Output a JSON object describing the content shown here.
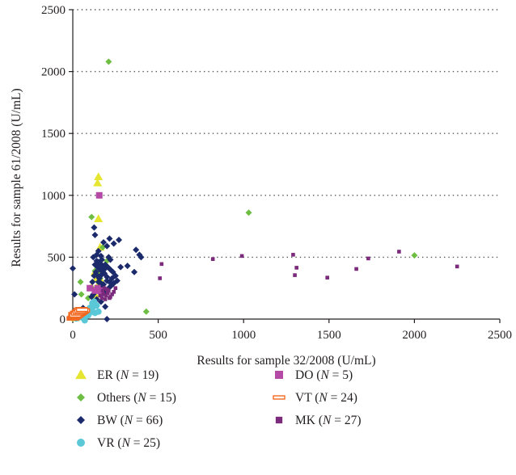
{
  "chart_data": {
    "type": "scatter",
    "xlabel": "Results for sample 32/2008 (U/mL)",
    "ylabel": "Results for sample 61/2008 (U/mL)",
    "xlim": [
      0,
      2500
    ],
    "ylim": [
      0,
      2500
    ],
    "x_ticks": [
      "0",
      "500",
      "1000",
      "1500",
      "2000",
      "2500"
    ],
    "y_ticks": [
      "0",
      "500",
      "1000",
      "1500",
      "2000",
      "2500"
    ],
    "grid": "horizontal dotted at 500-unit steps",
    "legend_placement": "below plot, two columns",
    "series": [
      {
        "name": "ER",
        "n_label": "19",
        "marker": "triangle",
        "color": "#e6e632",
        "points": [
          [
            150,
            1150
          ],
          [
            145,
            1100
          ],
          [
            150,
            810
          ],
          [
            160,
            580
          ],
          [
            130,
            380
          ],
          [
            155,
            420
          ],
          [
            170,
            300
          ],
          [
            110,
            260
          ],
          [
            130,
            200
          ],
          [
            145,
            270
          ],
          [
            120,
            150
          ],
          [
            60,
            60
          ],
          [
            40,
            45
          ],
          [
            30,
            35
          ],
          [
            20,
            20
          ],
          [
            15,
            10
          ],
          [
            50,
            70
          ],
          [
            140,
            330
          ],
          [
            100,
            90
          ]
        ]
      },
      {
        "name": "Others",
        "n_label": "15",
        "marker": "diamond",
        "color": "#6fbe44",
        "points": [
          [
            210,
            2080
          ],
          [
            1030,
            860
          ],
          [
            2000,
            515
          ],
          [
            110,
            825
          ],
          [
            175,
            580
          ],
          [
            130,
            390
          ],
          [
            160,
            380
          ],
          [
            45,
            300
          ],
          [
            50,
            200
          ],
          [
            25,
            10
          ],
          [
            430,
            60
          ],
          [
            160,
            330
          ],
          [
            120,
            240
          ],
          [
            90,
            170
          ],
          [
            200,
            470
          ]
        ]
      },
      {
        "name": "BW",
        "n_label": "66",
        "marker": "diamond",
        "color": "#1b2a6b",
        "points": [
          [
            125,
            740
          ],
          [
            130,
            680
          ],
          [
            0,
            410
          ],
          [
            200,
            590
          ],
          [
            215,
            650
          ],
          [
            240,
            610
          ],
          [
            270,
            640
          ],
          [
            180,
            620
          ],
          [
            150,
            550
          ],
          [
            120,
            500
          ],
          [
            140,
            470
          ],
          [
            160,
            450
          ],
          [
            175,
            430
          ],
          [
            190,
            410
          ],
          [
            210,
            500
          ],
          [
            220,
            480
          ],
          [
            165,
            510
          ],
          [
            145,
            420
          ],
          [
            135,
            380
          ],
          [
            125,
            350
          ],
          [
            155,
            330
          ],
          [
            170,
            360
          ],
          [
            185,
            370
          ],
          [
            200,
            340
          ],
          [
            215,
            300
          ],
          [
            230,
            330
          ],
          [
            250,
            350
          ],
          [
            280,
            420
          ],
          [
            320,
            430
          ],
          [
            360,
            380
          ],
          [
            370,
            560
          ],
          [
            390,
            520
          ],
          [
            400,
            500
          ],
          [
            180,
            280
          ],
          [
            160,
            260
          ],
          [
            145,
            240
          ],
          [
            130,
            220
          ],
          [
            120,
            200
          ],
          [
            110,
            180
          ],
          [
            140,
            160
          ],
          [
            165,
            140
          ],
          [
            180,
            210
          ],
          [
            195,
            230
          ],
          [
            210,
            250
          ],
          [
            225,
            270
          ],
          [
            240,
            290
          ],
          [
            260,
            310
          ],
          [
            190,
            100
          ],
          [
            200,
            0
          ],
          [
            60,
            90
          ],
          [
            10,
            200
          ],
          [
            150,
            460
          ],
          [
            170,
            480
          ],
          [
            140,
            520
          ],
          [
            130,
            440
          ],
          [
            160,
            400
          ],
          [
            175,
            390
          ],
          [
            190,
            440
          ],
          [
            205,
            420
          ],
          [
            220,
            400
          ],
          [
            235,
            380
          ],
          [
            150,
            300
          ],
          [
            165,
            290
          ],
          [
            200,
            310
          ],
          [
            145,
            350
          ],
          [
            115,
            300
          ]
        ]
      },
      {
        "name": "VR",
        "n_label": "25",
        "marker": "circle",
        "color": "#5bc8d8",
        "points": [
          [
            140,
            110
          ],
          [
            120,
            100
          ],
          [
            150,
            60
          ],
          [
            130,
            50
          ],
          [
            110,
            60
          ],
          [
            100,
            90
          ],
          [
            90,
            30
          ],
          [
            80,
            40
          ],
          [
            70,
            20
          ],
          [
            60,
            30
          ],
          [
            50,
            15
          ],
          [
            40,
            25
          ],
          [
            30,
            10
          ],
          [
            20,
            5
          ],
          [
            70,
            -10
          ],
          [
            105,
            80
          ],
          [
            115,
            130
          ],
          [
            125,
            140
          ],
          [
            85,
            55
          ],
          [
            95,
            45
          ],
          [
            55,
            40
          ],
          [
            45,
            35
          ],
          [
            35,
            20
          ],
          [
            25,
            15
          ],
          [
            65,
            50
          ]
        ]
      },
      {
        "name": "DO",
        "n_label": "5",
        "marker": "square",
        "color": "#b44aa6",
        "points": [
          [
            155,
            1000
          ],
          [
            145,
            250
          ],
          [
            100,
            250
          ],
          [
            130,
            230
          ],
          [
            160,
            230
          ]
        ]
      },
      {
        "name": "VT",
        "n_label": "24",
        "marker": "dash",
        "color": "#f26a22",
        "points": [
          [
            0,
            5
          ],
          [
            5,
            10
          ],
          [
            10,
            15
          ],
          [
            15,
            20
          ],
          [
            20,
            25
          ],
          [
            25,
            30
          ],
          [
            30,
            35
          ],
          [
            35,
            40
          ],
          [
            40,
            45
          ],
          [
            45,
            50
          ],
          [
            50,
            55
          ],
          [
            55,
            60
          ],
          [
            60,
            65
          ],
          [
            65,
            70
          ],
          [
            50,
            80
          ],
          [
            40,
            75
          ],
          [
            30,
            60
          ],
          [
            20,
            50
          ],
          [
            10,
            40
          ],
          [
            15,
            30
          ],
          [
            25,
            45
          ],
          [
            35,
            55
          ],
          [
            45,
            65
          ],
          [
            55,
            75
          ]
        ]
      },
      {
        "name": "MK",
        "n_label": "27",
        "marker": "square-small",
        "color": "#7b2a7c",
        "points": [
          [
            520,
            445
          ],
          [
            510,
            330
          ],
          [
            820,
            485
          ],
          [
            990,
            510
          ],
          [
            1290,
            520
          ],
          [
            1300,
            355
          ],
          [
            1310,
            415
          ],
          [
            1490,
            335
          ],
          [
            1660,
            405
          ],
          [
            1730,
            490
          ],
          [
            1910,
            545
          ],
          [
            2250,
            425
          ],
          [
            160,
            190
          ],
          [
            180,
            200
          ],
          [
            200,
            240
          ],
          [
            210,
            230
          ],
          [
            220,
            180
          ],
          [
            240,
            220
          ],
          [
            250,
            250
          ],
          [
            190,
            160
          ],
          [
            170,
            170
          ],
          [
            230,
            200
          ],
          [
            205,
            210
          ],
          [
            215,
            170
          ],
          [
            175,
            230
          ],
          [
            195,
            190
          ],
          [
            185,
            250
          ]
        ]
      }
    ]
  }
}
